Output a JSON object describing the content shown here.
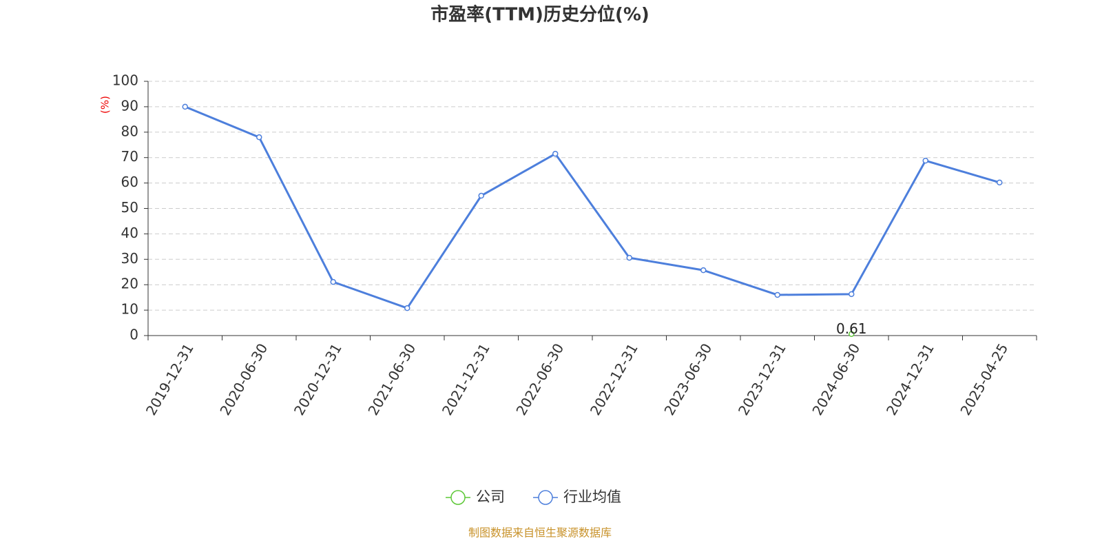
{
  "chart_data": {
    "type": "line",
    "title": "市盈率(TTM)历史分位(%)",
    "y_label": "(%)",
    "categories": [
      "2019-12-31",
      "2020-06-30",
      "2020-12-31",
      "2021-06-30",
      "2021-12-31",
      "2022-06-30",
      "2022-12-31",
      "2023-06-30",
      "2023-12-31",
      "2024-06-30",
      "2024-12-31",
      "2025-04-25"
    ],
    "series": [
      {
        "name": "公司",
        "color": "#5cc836",
        "values": [
          null,
          null,
          null,
          null,
          null,
          null,
          null,
          null,
          null,
          0.61,
          null,
          null
        ]
      },
      {
        "name": "行业均值",
        "color": "#4d7fdc",
        "values": [
          90.0,
          78.0,
          21.1,
          10.8,
          55.0,
          71.5,
          30.6,
          25.7,
          16.0,
          16.3,
          68.8,
          60.2
        ]
      }
    ],
    "ylim": [
      0,
      100
    ],
    "yticks": [
      0,
      10,
      20,
      30,
      40,
      50,
      60,
      70,
      80,
      90,
      100
    ],
    "grid": true,
    "legend": "bottom",
    "source": "制图数据来自恒生聚源数据库"
  }
}
